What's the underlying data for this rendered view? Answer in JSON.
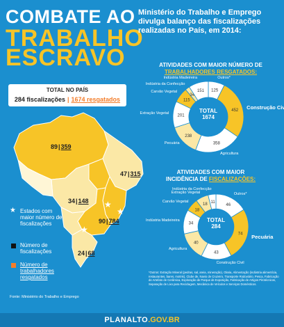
{
  "title": {
    "line1": "COMBATE AO",
    "line2": "TRABALHO",
    "line3": "ESCRAVO"
  },
  "headline": "Ministério do Trabalho e Emprego divulga balanço das fiscalizações realizadas no País, em 2014:",
  "total": {
    "label": "TOTAL NO PAÍS",
    "fiscalizacoes": "284 fiscalizações",
    "separator": "|",
    "resgatados": "1674 resgatados"
  },
  "map": {
    "states": [
      {
        "fisc": "89",
        "resg": "359"
      },
      {
        "fisc": "47",
        "resg": "315"
      },
      {
        "fisc": "34",
        "resg": "148"
      },
      {
        "fisc": "90",
        "resg": "784"
      },
      {
        "fisc": "24",
        "resg": "68"
      }
    ],
    "separator": "|",
    "colors": {
      "highlight": "#f7c427",
      "light": "#fbe8a6",
      "pale": "#fff6d6",
      "ocean": "#1b8fcf"
    }
  },
  "legend": {
    "star": "Estados com maior número de fiscalizações",
    "fisc": "Número de fiscalizações",
    "resg": "Número de trabalhadores resgatados"
  },
  "chart1": {
    "title_a": "ATIVIDADES COM MAIOR NÚMERO DE",
    "title_b": "TRABALHADORES RESGATADOS:",
    "center_label": "TOTAL",
    "center_value": "1674",
    "chart_data": {
      "type": "pie",
      "categories": [
        "Outros*",
        "Construção Civil",
        "Agricultura",
        "Pecuária",
        "Extração Vegetal",
        "Carvão Vegetal",
        "Indústria da Confecção",
        "Indústria Madeireira"
      ],
      "values": [
        125,
        452,
        358,
        238,
        201,
        115,
        34,
        151
      ]
    }
  },
  "chart2": {
    "title_a": "ATIVIDADES COM MAIOR",
    "title_b": "INCIDÊNCIA DE",
    "title_c": "FISCALIZAÇÕES:",
    "center_label": "TOTAL",
    "center_value": "284",
    "chart_data": {
      "type": "pie",
      "categories": [
        "Outros*",
        "Pecuária",
        "Construção Civil",
        "Agricultura",
        "Indústria Madeireira",
        "Carvão Vegetal",
        "Extração Vegetal",
        "Indústria da Confecção"
      ],
      "values": [
        46,
        74,
        43,
        40,
        34,
        18,
        18,
        11
      ]
    }
  },
  "footnote": "*Outros: Extração Mineral (pedras, sal, areia, mineração), Olaria, Alimentação (indústria alimentícia, restaurantes, bares, motéis), Clube de, Navio de Cruzeiro, Transporte Rodoviário, Pesca, Fabricação de Artefato de Cerâmica, Exploração de Parque de Exposição, Fabricação de Artigos Pirotécnicos, Separação de Lixo para Reciclagem, Mecânica de Veículos e Serviços Domésticos.",
  "source": "Fonte: Ministério do Trabalho e Emprego",
  "footer": {
    "brand": "PLANALTO",
    "domain": ".GOV.BR"
  },
  "colors": {
    "background": "#1b8fcf",
    "yellow": "#f7c427",
    "orange": "#f47d2a"
  }
}
